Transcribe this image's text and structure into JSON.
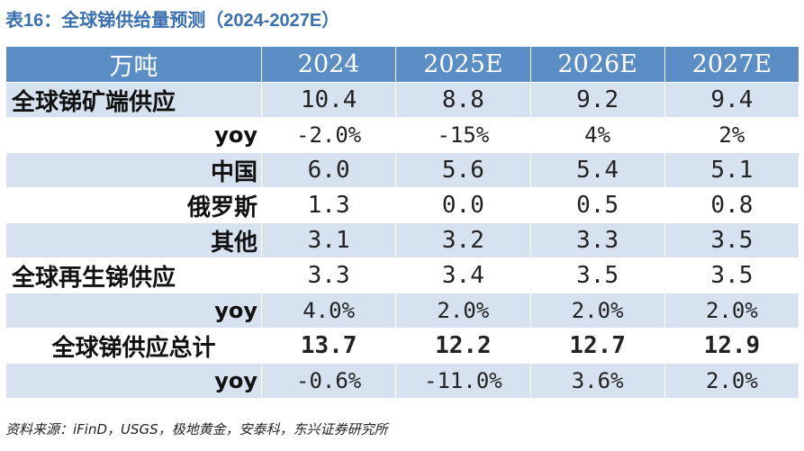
{
  "title": "表16：全球锑供给量预测（2024-2027E）",
  "table": {
    "headers": [
      "万吨",
      "2024",
      "2025E",
      "2026E",
      "2027E"
    ],
    "rows": [
      {
        "label": "全球锑矿端供应",
        "values": [
          "10.4",
          "8.8",
          "9.2",
          "9.4"
        ]
      },
      {
        "label": "yoy",
        "values": [
          "-2.0%",
          "-15%",
          "4%",
          "2%"
        ]
      },
      {
        "label": "中国",
        "values": [
          "6.0",
          "5.6",
          "5.4",
          "5.1"
        ]
      },
      {
        "label": "俄罗斯",
        "values": [
          "1.3",
          "0.0",
          "0.5",
          "0.8"
        ]
      },
      {
        "label": "其他",
        "values": [
          "3.1",
          "3.2",
          "3.3",
          "3.5"
        ]
      },
      {
        "label": "全球再生锑供应",
        "values": [
          "3.3",
          "3.4",
          "3.5",
          "3.5"
        ]
      },
      {
        "label": "yoy",
        "values": [
          "4.0%",
          "2.0%",
          "2.0%",
          "2.0%"
        ]
      },
      {
        "label": "全球锑供应总计",
        "values": [
          "13.7",
          "12.2",
          "12.7",
          "12.9"
        ]
      },
      {
        "label": "yoy",
        "values": [
          "-0.6%",
          "-11.0%",
          "3.6%",
          "2.0%"
        ]
      }
    ]
  },
  "source": "资料来源：iFinD，USGS，极地黄金，安泰科，东兴证券研究所",
  "colors": {
    "title": "#3a6fb0",
    "header_bg": "#5b8ec4",
    "band_bg": "#d7e2f0"
  }
}
